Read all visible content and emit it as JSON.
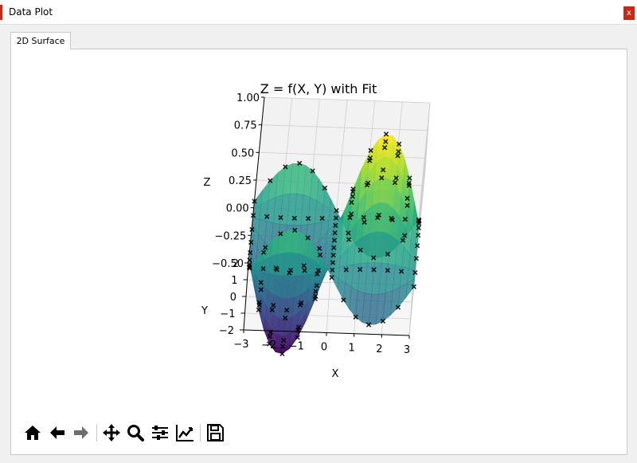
{
  "window": {
    "title": "Data Plot",
    "close_label": "x",
    "accent_color": "#c42b1c"
  },
  "tabs": [
    {
      "label": "2D Surface"
    }
  ],
  "toolbar": {
    "buttons": [
      {
        "name": "home-button",
        "icon": "home-icon"
      },
      {
        "name": "back-button",
        "icon": "arrow-left-icon"
      },
      {
        "name": "forward-button",
        "icon": "arrow-right-icon"
      },
      {
        "name": "pan-button",
        "icon": "move-icon"
      },
      {
        "name": "zoom-button",
        "icon": "magnifier-icon"
      },
      {
        "name": "configure-subplots-button",
        "icon": "sliders-icon"
      },
      {
        "name": "edit-axis-button",
        "icon": "line-chart-icon"
      },
      {
        "name": "save-button",
        "icon": "floppy-disk-icon"
      }
    ]
  },
  "chart_data": {
    "type": "surface3d",
    "title": "Z = f(X, Y) with Fit",
    "xlabel": "X",
    "ylabel": "Y",
    "zlabel": "Z",
    "x_ticks": [
      "−3",
      "−2",
      "−1",
      "0",
      "1",
      "2",
      "3"
    ],
    "y_ticks": [
      "2",
      "1",
      "0",
      "−1",
      "−2"
    ],
    "z_ticks": [
      "1.00",
      "0.75",
      "0.50",
      "0.25",
      "0.00",
      "−0.25",
      "−0.50"
    ],
    "xlim": [
      -3,
      3
    ],
    "ylim": [
      -2,
      2
    ],
    "zlim": [
      -0.5,
      1.0
    ],
    "colormap": "viridis",
    "series": [
      {
        "kind": "surface",
        "function": "sin(X)*cos(Y)"
      },
      {
        "kind": "scatter",
        "marker": "x",
        "color": "#000000",
        "function": "sin(X)*cos(Y)"
      }
    ]
  }
}
